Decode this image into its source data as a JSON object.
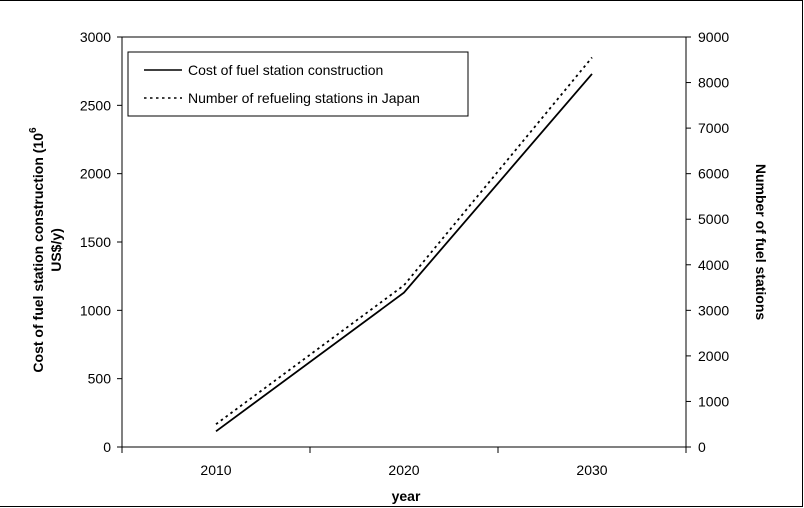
{
  "chart_data": {
    "type": "line",
    "x": [
      "2010",
      "2020",
      "2030"
    ],
    "xlabel": "year",
    "ylabel_left_main": "Cost of fuel station construction (10",
    "ylabel_left_sup": "6",
    "ylabel_left_tail": "US$/y)",
    "ylabel_right": "Number of fuel stations",
    "ylim_left": [
      0,
      3000
    ],
    "ylim_right": [
      0,
      9000
    ],
    "yticks_left": [
      "0",
      "500",
      "1000",
      "1500",
      "2000",
      "2500",
      "3000"
    ],
    "yticks_right": [
      "0",
      "1000",
      "2000",
      "3000",
      "4000",
      "5000",
      "6000",
      "7000",
      "8000",
      "9000"
    ],
    "series": [
      {
        "name": "Cost of fuel station construction",
        "axis": "left",
        "style": "solid",
        "values": [
          115,
          1130,
          2730
        ]
      },
      {
        "name": "Number of refueling stations in Japan",
        "axis": "right",
        "style": "dotted",
        "values": [
          500,
          3550,
          8550
        ]
      }
    ],
    "legend": "top-left",
    "grid": false
  }
}
